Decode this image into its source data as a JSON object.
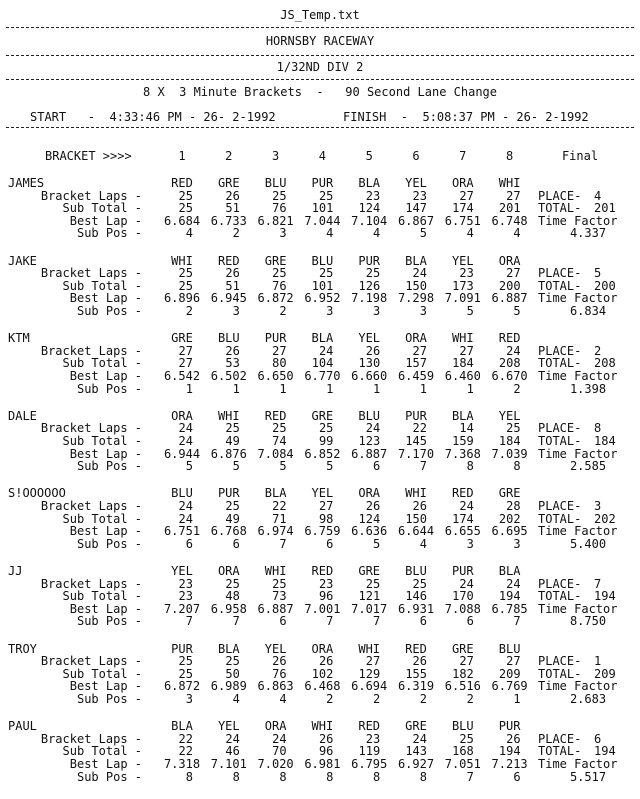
{
  "document": {
    "filename": "JS_Temp.txt",
    "venue": "HORNSBY RACEWAY",
    "division": "1/32ND DIV 2",
    "format": "8 X  3 Minute Brackets  -   90 Second Lane Change",
    "start": "START   -  4:33:46 PM - 26- 2-1992",
    "finish": "FINISH  -  5:08:37 PM - 26- 2-1992",
    "bracket_header": "BRACKET >>>>",
    "brackets": [
      "1",
      "2",
      "3",
      "4",
      "5",
      "6",
      "7",
      "8"
    ],
    "final_header": "Final"
  },
  "row_labels": {
    "bracket_laps": "Bracket Laps -",
    "sub_total": "Sub Total -",
    "best_lap": "Best Lap -",
    "sub_pos": "Sub Pos -",
    "place": "PLACE- ",
    "total": "TOTAL- ",
    "time_factor": "Time Factor"
  },
  "racers": [
    {
      "name": "JAMES",
      "lanes": [
        "RED",
        "GRE",
        "BLU",
        "PUR",
        "BLA",
        "YEL",
        "ORA",
        "WHI"
      ],
      "bracket_laps": [
        "25",
        "26",
        "25",
        "25",
        "23",
        "23",
        "27",
        "27"
      ],
      "sub_total": [
        "25",
        "51",
        "76",
        "101",
        "124",
        "147",
        "174",
        "201"
      ],
      "best_lap": [
        "6.684",
        "6.733",
        "6.821",
        "7.044",
        "7.104",
        "6.867",
        "6.751",
        "6.748"
      ],
      "sub_pos": [
        "4",
        "2",
        "3",
        "4",
        "4",
        "5",
        "4",
        "4"
      ],
      "place": "4",
      "total": "201",
      "time_factor": "4.337"
    },
    {
      "name": "JAKE",
      "lanes": [
        "WHI",
        "RED",
        "GRE",
        "BLU",
        "PUR",
        "BLA",
        "YEL",
        "ORA"
      ],
      "bracket_laps": [
        "25",
        "26",
        "25",
        "25",
        "25",
        "24",
        "23",
        "27"
      ],
      "sub_total": [
        "25",
        "51",
        "76",
        "101",
        "126",
        "150",
        "173",
        "200"
      ],
      "best_lap": [
        "6.896",
        "6.945",
        "6.872",
        "6.952",
        "7.198",
        "7.298",
        "7.091",
        "6.887"
      ],
      "sub_pos": [
        "2",
        "3",
        "2",
        "3",
        "3",
        "3",
        "5",
        "5"
      ],
      "place": "5",
      "total": "200",
      "time_factor": "6.834"
    },
    {
      "name": "KTM",
      "lanes": [
        "GRE",
        "BLU",
        "PUR",
        "BLA",
        "YEL",
        "ORA",
        "WHI",
        "RED"
      ],
      "bracket_laps": [
        "27",
        "26",
        "27",
        "24",
        "26",
        "27",
        "27",
        "24"
      ],
      "sub_total": [
        "27",
        "53",
        "80",
        "104",
        "130",
        "157",
        "184",
        "208"
      ],
      "best_lap": [
        "6.542",
        "6.502",
        "6.650",
        "6.770",
        "6.660",
        "6.459",
        "6.460",
        "6.670"
      ],
      "sub_pos": [
        "1",
        "1",
        "1",
        "1",
        "1",
        "1",
        "1",
        "2"
      ],
      "place": "2",
      "total": "208",
      "time_factor": "1.398"
    },
    {
      "name": "DALE",
      "lanes": [
        "ORA",
        "WHI",
        "RED",
        "GRE",
        "BLU",
        "PUR",
        "BLA",
        "YEL"
      ],
      "bracket_laps": [
        "24",
        "25",
        "25",
        "25",
        "24",
        "22",
        "14",
        "25"
      ],
      "sub_total": [
        "24",
        "49",
        "74",
        "99",
        "123",
        "145",
        "159",
        "184"
      ],
      "best_lap": [
        "6.944",
        "6.876",
        "7.084",
        "6.852",
        "6.887",
        "7.170",
        "7.368",
        "7.039"
      ],
      "sub_pos": [
        "5",
        "5",
        "5",
        "5",
        "6",
        "7",
        "8",
        "8"
      ],
      "place": "8",
      "total": "184",
      "time_factor": "2.585"
    },
    {
      "name": "S!OOOOOO",
      "lanes": [
        "BLU",
        "PUR",
        "BLA",
        "YEL",
        "ORA",
        "WHI",
        "RED",
        "GRE"
      ],
      "bracket_laps": [
        "24",
        "25",
        "22",
        "27",
        "26",
        "26",
        "24",
        "28"
      ],
      "sub_total": [
        "24",
        "49",
        "71",
        "98",
        "124",
        "150",
        "174",
        "202"
      ],
      "best_lap": [
        "6.751",
        "6.768",
        "6.974",
        "6.759",
        "6.636",
        "6.644",
        "6.655",
        "6.695"
      ],
      "sub_pos": [
        "6",
        "6",
        "7",
        "6",
        "5",
        "4",
        "3",
        "3"
      ],
      "place": "3",
      "total": "202",
      "time_factor": "5.400"
    },
    {
      "name": "JJ",
      "lanes": [
        "YEL",
        "ORA",
        "WHI",
        "RED",
        "GRE",
        "BLU",
        "PUR",
        "BLA"
      ],
      "bracket_laps": [
        "23",
        "25",
        "25",
        "23",
        "25",
        "25",
        "24",
        "24"
      ],
      "sub_total": [
        "23",
        "48",
        "73",
        "96",
        "121",
        "146",
        "170",
        "194"
      ],
      "best_lap": [
        "7.207",
        "6.958",
        "6.887",
        "7.001",
        "7.017",
        "6.931",
        "7.088",
        "6.785"
      ],
      "sub_pos": [
        "7",
        "7",
        "6",
        "7",
        "7",
        "6",
        "6",
        "7"
      ],
      "place": "7",
      "total": "194",
      "time_factor": "8.750"
    },
    {
      "name": "TROY",
      "lanes": [
        "PUR",
        "BLA",
        "YEL",
        "ORA",
        "WHI",
        "RED",
        "GRE",
        "BLU"
      ],
      "bracket_laps": [
        "25",
        "25",
        "26",
        "26",
        "27",
        "26",
        "27",
        "27"
      ],
      "sub_total": [
        "25",
        "50",
        "76",
        "102",
        "129",
        "155",
        "182",
        "209"
      ],
      "best_lap": [
        "6.872",
        "6.989",
        "6.863",
        "6.468",
        "6.694",
        "6.319",
        "6.516",
        "6.769"
      ],
      "sub_pos": [
        "3",
        "4",
        "4",
        "2",
        "2",
        "2",
        "2",
        "1"
      ],
      "place": "1",
      "total": "209",
      "time_factor": "2.683"
    },
    {
      "name": "PAUL",
      "lanes": [
        "BLA",
        "YEL",
        "ORA",
        "WHI",
        "RED",
        "GRE",
        "BLU",
        "PUR"
      ],
      "bracket_laps": [
        "22",
        "24",
        "24",
        "26",
        "23",
        "24",
        "25",
        "26"
      ],
      "sub_total": [
        "22",
        "46",
        "70",
        "96",
        "119",
        "143",
        "168",
        "194"
      ],
      "best_lap": [
        "7.318",
        "7.101",
        "7.020",
        "6.981",
        "6.795",
        "6.927",
        "7.051",
        "7.213"
      ],
      "sub_pos": [
        "8",
        "8",
        "8",
        "8",
        "8",
        "8",
        "7",
        "6"
      ],
      "place": "6",
      "total": "194",
      "time_factor": "5.517"
    }
  ]
}
